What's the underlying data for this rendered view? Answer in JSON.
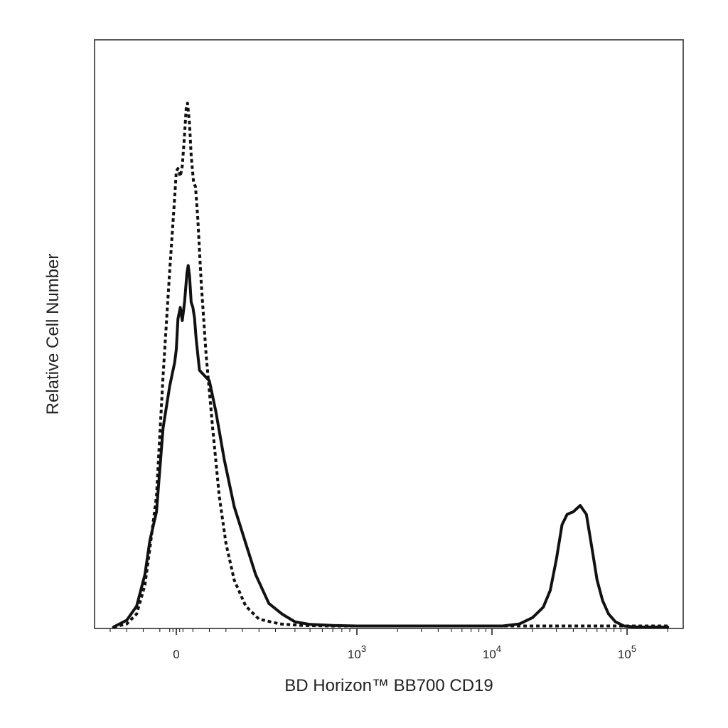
{
  "chart_data": {
    "type": "line",
    "title": "",
    "xlabel": "BD Horizon™ BB700 CD19",
    "ylabel": "Relative Cell Number",
    "x_scale": "biexponential",
    "xlim": [
      -200,
      200000
    ],
    "ylim": [
      0,
      100
    ],
    "grid": false,
    "legend": "none",
    "x_ticks": [
      {
        "value": 0,
        "label": "0",
        "power": ""
      },
      {
        "value": 1000,
        "label": "10",
        "power": "3"
      },
      {
        "value": 10000,
        "label": "10",
        "power": "4"
      },
      {
        "value": 100000,
        "label": "10",
        "power": "5"
      }
    ],
    "series": [
      {
        "style": "solid",
        "color": "#111111",
        "points": [
          [
            -190,
            0
          ],
          [
            -150,
            1.3
          ],
          [
            -120,
            4
          ],
          [
            -95,
            10
          ],
          [
            -80,
            16.5
          ],
          [
            -60,
            22
          ],
          [
            -40,
            38
          ],
          [
            -20,
            46
          ],
          [
            -5,
            50.5
          ],
          [
            0,
            53
          ],
          [
            5,
            58.8
          ],
          [
            12,
            61
          ],
          [
            18,
            58.5
          ],
          [
            25,
            62
          ],
          [
            32,
            67.5
          ],
          [
            36,
            69
          ],
          [
            40,
            67
          ],
          [
            45,
            62
          ],
          [
            50,
            61
          ],
          [
            55,
            59
          ],
          [
            60,
            55
          ],
          [
            70,
            49
          ],
          [
            85,
            48
          ],
          [
            100,
            47
          ],
          [
            120,
            41
          ],
          [
            145,
            32
          ],
          [
            175,
            23
          ],
          [
            210,
            16
          ],
          [
            240,
            10
          ],
          [
            280,
            4.5
          ],
          [
            330,
            2.5
          ],
          [
            400,
            1
          ],
          [
            500,
            0.5
          ],
          [
            700,
            0.3
          ],
          [
            1000,
            0.2
          ],
          [
            2000,
            0.2
          ],
          [
            5000,
            0.2
          ],
          [
            12000,
            0.2
          ],
          [
            16000,
            0.6
          ],
          [
            20000,
            1.8
          ],
          [
            24000,
            3.8
          ],
          [
            27000,
            7
          ],
          [
            30000,
            13
          ],
          [
            33000,
            19.5
          ],
          [
            36000,
            21.5
          ],
          [
            40000,
            22
          ],
          [
            45000,
            23.2
          ],
          [
            50000,
            21.5
          ],
          [
            55000,
            15
          ],
          [
            60000,
            9
          ],
          [
            66000,
            5
          ],
          [
            73000,
            2.5
          ],
          [
            82000,
            1
          ],
          [
            95000,
            0.2
          ],
          [
            120000,
            0
          ],
          [
            200000,
            0
          ]
        ]
      },
      {
        "style": "dotted",
        "color": "#111111",
        "points": [
          [
            -190,
            0
          ],
          [
            -150,
            0.6
          ],
          [
            -120,
            2.5
          ],
          [
            -95,
            8
          ],
          [
            -80,
            15
          ],
          [
            -60,
            25
          ],
          [
            -40,
            48
          ],
          [
            -20,
            68
          ],
          [
            -5,
            82
          ],
          [
            0,
            87
          ],
          [
            5,
            87.5
          ],
          [
            12,
            86
          ],
          [
            18,
            88
          ],
          [
            25,
            94
          ],
          [
            30,
            99
          ],
          [
            34,
            100
          ],
          [
            40,
            96
          ],
          [
            45,
            90
          ],
          [
            52,
            85
          ],
          [
            58,
            84
          ],
          [
            65,
            78
          ],
          [
            75,
            66
          ],
          [
            90,
            52
          ],
          [
            110,
            38
          ],
          [
            130,
            25
          ],
          [
            150,
            16
          ],
          [
            175,
            9
          ],
          [
            210,
            4
          ],
          [
            250,
            1.5
          ],
          [
            320,
            0.6
          ],
          [
            450,
            0.3
          ],
          [
            700,
            0.2
          ],
          [
            1000,
            0.2
          ],
          [
            5000,
            0.2
          ],
          [
            20000,
            0.2
          ],
          [
            50000,
            0.2
          ],
          [
            100000,
            0.2
          ],
          [
            200000,
            0.2
          ]
        ]
      }
    ]
  }
}
